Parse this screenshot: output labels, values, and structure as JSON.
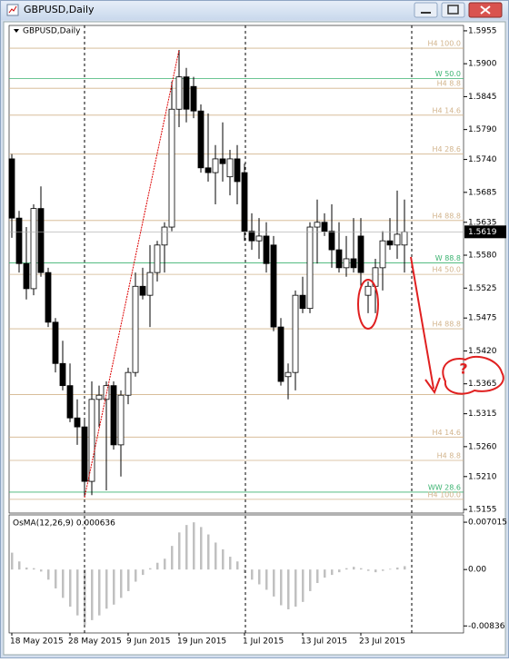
{
  "chart_data": [
    {
      "type": "candlestick",
      "title": "GBPUSD,Daily",
      "categories": [
        "18 May 2015",
        null,
        null,
        null,
        null,
        null,
        null,
        null,
        "28 May 2015",
        null,
        null,
        null,
        null,
        null,
        null,
        null,
        "9 Jun 2015",
        null,
        null,
        null,
        null,
        null,
        null,
        "19 Jun 2015",
        null,
        null,
        null,
        null,
        null,
        null,
        null,
        null,
        "1 Jul 2015",
        null,
        null,
        null,
        null,
        null,
        null,
        null,
        "13 Jul 2015",
        null,
        null,
        null,
        null,
        null,
        null,
        null,
        "23 Jul 2015",
        null,
        null,
        null,
        null,
        null,
        null
      ],
      "open": [
        1.5741,
        1.5642,
        1.5566,
        1.5524,
        1.5658,
        1.5551,
        1.5468,
        1.5399,
        1.5362,
        1.5308,
        1.5293,
        1.5202,
        1.5339,
        1.5339,
        1.5362,
        1.5263,
        1.5346,
        1.5384,
        1.5528,
        1.5513,
        1.5551,
        1.5597,
        1.5627,
        1.5824,
        1.5878,
        1.5862,
        1.5821,
        1.5726,
        1.5718,
        1.5741,
        1.5711,
        1.5741,
        1.5718,
        1.562,
        1.5604,
        1.5612,
        1.5597,
        1.546,
        1.5377,
        1.5384,
        1.5513,
        1.5491,
        1.5627,
        1.5635,
        1.562,
        1.5589,
        1.5559,
        1.5574,
        1.5612,
        1.5513,
        1.5528,
        1.5559,
        1.5604,
        1.5597,
        1.5597
      ],
      "high": [
        1.5749,
        1.5654,
        1.5627,
        1.5665,
        1.5695,
        1.5559,
        1.5475,
        1.5437,
        1.5399,
        1.5339,
        1.5308,
        1.5369,
        1.5362,
        1.5369,
        1.5369,
        1.5354,
        1.5392,
        1.5551,
        1.5559,
        1.5597,
        1.5604,
        1.5635,
        1.587,
        1.5923,
        1.5893,
        1.5878,
        1.5832,
        1.5817,
        1.5764,
        1.5802,
        1.5756,
        1.5764,
        1.5733,
        1.565,
        1.5642,
        1.5635,
        1.5612,
        1.5475,
        1.5399,
        1.5521,
        1.5544,
        1.5635,
        1.5673,
        1.565,
        1.5665,
        1.5635,
        1.5612,
        1.5642,
        1.5642,
        1.5536,
        1.5574,
        1.562,
        1.5642,
        1.5688,
        1.5673
      ],
      "low": [
        1.5609,
        1.5551,
        1.5506,
        1.5513,
        1.5544,
        1.546,
        1.5384,
        1.5354,
        1.5301,
        1.5263,
        1.5179,
        1.5179,
        1.5293,
        1.5187,
        1.5255,
        1.521,
        1.5331,
        1.5377,
        1.5506,
        1.546,
        1.5536,
        1.5551,
        1.562,
        1.5794,
        1.5802,
        1.5809,
        1.5718,
        1.5703,
        1.5665,
        1.5703,
        1.568,
        1.5665,
        1.5604,
        1.5589,
        1.5574,
        1.5551,
        1.5453,
        1.5362,
        1.5339,
        1.5354,
        1.5483,
        1.5483,
        1.5566,
        1.5612,
        1.5559,
        1.5551,
        1.5544,
        1.5551,
        1.5528,
        1.5483,
        1.5483,
        1.5521,
        1.5589,
        1.5574,
        1.5551
      ],
      "close": [
        1.5642,
        1.5566,
        1.5524,
        1.5658,
        1.5551,
        1.5468,
        1.5399,
        1.5362,
        1.5308,
        1.5293,
        1.5202,
        1.5339,
        1.5346,
        1.5362,
        1.5263,
        1.5346,
        1.5384,
        1.5528,
        1.5513,
        1.5551,
        1.5597,
        1.5627,
        1.5824,
        1.5878,
        1.5824,
        1.5821,
        1.5726,
        1.5718,
        1.5741,
        1.5733,
        1.5741,
        1.5703,
        1.562,
        1.5604,
        1.5612,
        1.5566,
        1.546,
        1.5369,
        1.5384,
        1.5513,
        1.5491,
        1.5627,
        1.5635,
        1.562,
        1.5589,
        1.5559,
        1.5574,
        1.5559,
        1.5551,
        1.5528,
        1.5559,
        1.5604,
        1.5597,
        1.5615,
        1.5619
      ],
      "bull_color": "#ffffff",
      "bear_color": "#000000",
      "wick_color": "#000000",
      "ylim": [
        1.5149,
        1.5964
      ],
      "yticks": [
        1.5955,
        {
          "value": 1.59,
          "label": "1.5900"
        },
        1.5845,
        {
          "value": 1.579,
          "label": "1.5790"
        },
        {
          "value": 1.574,
          "label": "1.5740"
        },
        1.5685,
        1.5635,
        {
          "value": 1.558,
          "label": "1.5580"
        },
        1.5525,
        1.5475,
        {
          "value": 1.542,
          "label": "1.5420"
        },
        1.5365,
        1.5315,
        {
          "value": 1.526,
          "label": "1.5260"
        },
        {
          "value": 1.521,
          "label": "1.5210"
        },
        1.5155
      ],
      "last_price": 1.5619,
      "levels": [
        {
          "label": "H4 100.0",
          "value": 1.5926,
          "color": "#d2b48c"
        },
        {
          "label": "W 50.0",
          "value": 1.5875,
          "color": "#3cb371"
        },
        {
          "label": "H4 8.8",
          "value": 1.5859,
          "color": "#d2b48c"
        },
        {
          "label": "H4 14.6",
          "value": 1.5814,
          "color": "#d2b48c"
        },
        {
          "label": "H4 28.6",
          "value": 1.5749,
          "color": "#d2b48c"
        },
        {
          "label": "H4 88.8",
          "value": 1.5638,
          "color": "#d2b48c"
        },
        {
          "label": "W 88.8",
          "value": 1.5567,
          "color": "#3cb371"
        },
        {
          "label": "H4 50.0",
          "value": 1.5548,
          "color": "#d2b48c"
        },
        {
          "label": "H4 88.8",
          "value": 1.5457,
          "color": "#d2b48c"
        },
        {
          "value": 1.5347,
          "color": "#d2b48c"
        },
        {
          "label": "H4 14.6",
          "value": 1.5276,
          "color": "#d2b48c"
        },
        {
          "label": "H4 8.8",
          "value": 1.5237,
          "color": "#d2b48c"
        },
        {
          "label": "WW 28.6",
          "value": 1.5184,
          "color": "#3cb371"
        },
        {
          "label": "H4 100.0",
          "value": 1.5172,
          "color": "#d2b48c"
        }
      ],
      "annotation": "?"
    },
    {
      "type": "bar",
      "title": "OsMA(12,26,9) 0.000636",
      "color": "#c0c0c0",
      "values": [
        0.0025,
        0.0012,
        0.0003,
        0.0002,
        -0.0003,
        -0.0015,
        -0.0028,
        -0.0042,
        -0.0055,
        -0.0068,
        -0.0082,
        -0.0075,
        -0.0068,
        -0.0058,
        -0.0052,
        -0.0042,
        -0.0032,
        -0.0018,
        -0.0008,
        0.0002,
        0.001,
        0.0016,
        0.0035,
        0.0055,
        0.0066,
        0.007,
        0.0063,
        0.0052,
        0.004,
        0.003,
        0.0019,
        0.0012,
        -0.0005,
        -0.0015,
        -0.0022,
        -0.003,
        -0.004,
        -0.0053,
        -0.0059,
        -0.0055,
        -0.0048,
        -0.0032,
        -0.002,
        -0.0012,
        -0.0008,
        -0.0004,
        0.0002,
        0.0004,
        0.0002,
        -0.0002,
        -0.0004,
        -0.0002,
        0.0001,
        0.0003,
        0.0005
      ],
      "ylim": [
        -0.0094,
        0.0081
      ],
      "yticks": [
        0.007015,
        {
          "value": 0,
          "label": "0.00"
        },
        -0.00836
      ]
    }
  ]
}
